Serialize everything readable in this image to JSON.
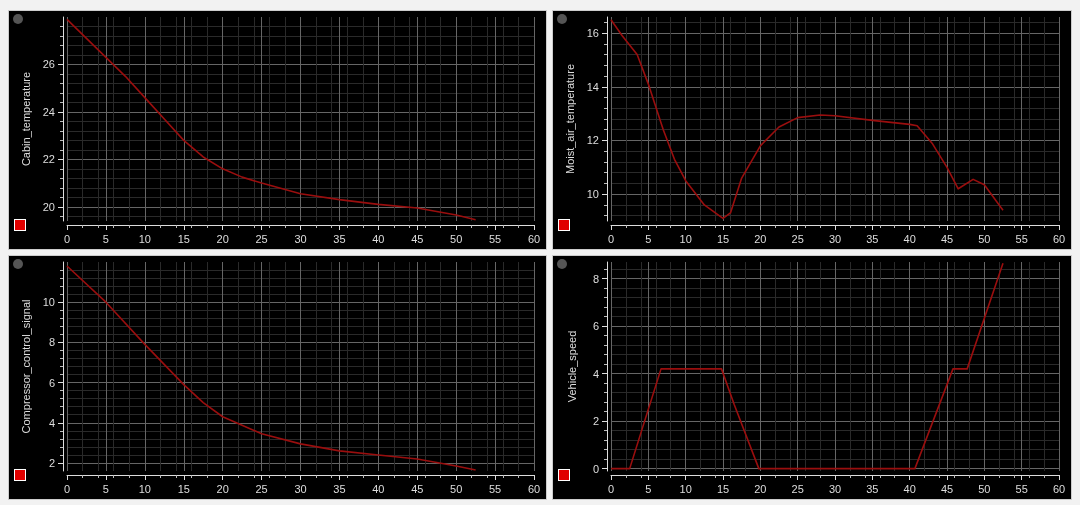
{
  "chart_data": [
    {
      "type": "line",
      "ylabel": "Cabin_temperature",
      "color": "#9a0e0e",
      "grid": true,
      "xlim": [
        0,
        60
      ],
      "xticks": [
        0,
        5,
        10,
        15,
        20,
        25,
        30,
        35,
        40,
        45,
        50,
        55,
        60
      ],
      "ylim": [
        19.4,
        28
      ],
      "yticks": [
        20,
        22,
        24,
        26
      ],
      "x": [
        0,
        2.5,
        5,
        7.5,
        10,
        12.5,
        15,
        17.5,
        20,
        22.5,
        25,
        30,
        35,
        40,
        45,
        47.5,
        50,
        52.5
      ],
      "values": [
        27.9,
        27.1,
        26.3,
        25.5,
        24.6,
        23.7,
        22.8,
        22.1,
        21.6,
        21.25,
        21.0,
        20.55,
        20.3,
        20.1,
        19.95,
        19.8,
        19.65,
        19.45
      ]
    },
    {
      "type": "line",
      "ylabel": "Moist_air_temperature",
      "color": "#9a0e0e",
      "grid": true,
      "xlim": [
        0,
        60
      ],
      "xticks": [
        0,
        5,
        10,
        15,
        20,
        25,
        30,
        35,
        40,
        45,
        50,
        55,
        60
      ],
      "ylim": [
        9,
        16.6
      ],
      "yticks": [
        10,
        12,
        14,
        16
      ],
      "x": [
        0,
        1.5,
        3.5,
        5,
        7,
        8.5,
        10,
        12.5,
        15,
        16,
        17.5,
        20,
        22.5,
        25,
        28,
        30,
        35,
        40,
        41,
        43,
        45,
        46.5,
        48.5,
        50,
        52.5
      ],
      "values": [
        16.5,
        15.9,
        15.2,
        14.1,
        12.4,
        11.3,
        10.5,
        9.6,
        9.1,
        9.3,
        10.6,
        11.8,
        12.5,
        12.85,
        12.95,
        12.92,
        12.75,
        12.6,
        12.55,
        11.9,
        11.0,
        10.2,
        10.55,
        10.35,
        9.4
      ]
    },
    {
      "type": "line",
      "ylabel": "Compressor_control_signal",
      "color": "#9a0e0e",
      "grid": true,
      "xlim": [
        0,
        60
      ],
      "xticks": [
        0,
        5,
        10,
        15,
        20,
        25,
        30,
        35,
        40,
        45,
        50,
        55,
        60
      ],
      "ylim": [
        1.6,
        12
      ],
      "yticks": [
        2,
        4,
        6,
        8,
        10
      ],
      "x": [
        0,
        5,
        10,
        15,
        17.5,
        20,
        25,
        30,
        35,
        40,
        45,
        50,
        52.5
      ],
      "values": [
        11.8,
        10.0,
        7.9,
        5.9,
        5.0,
        4.3,
        3.45,
        2.95,
        2.6,
        2.4,
        2.2,
        1.85,
        1.65
      ]
    },
    {
      "type": "line",
      "ylabel": "Vehicle_speed",
      "color": "#9a0e0e",
      "grid": true,
      "xlim": [
        0,
        60
      ],
      "xticks": [
        0,
        5,
        10,
        15,
        20,
        25,
        30,
        35,
        40,
        45,
        50,
        55,
        60
      ],
      "ylim": [
        -0.1,
        8.7
      ],
      "yticks": [
        0,
        2,
        4,
        6,
        8
      ],
      "x": [
        0,
        2.5,
        6.7,
        14.8,
        16.5,
        19.8,
        40.7,
        45.8,
        47.7,
        52.5
      ],
      "values": [
        0,
        0,
        4.2,
        4.2,
        2.7,
        0,
        0,
        4.2,
        4.2,
        8.65
      ]
    }
  ]
}
